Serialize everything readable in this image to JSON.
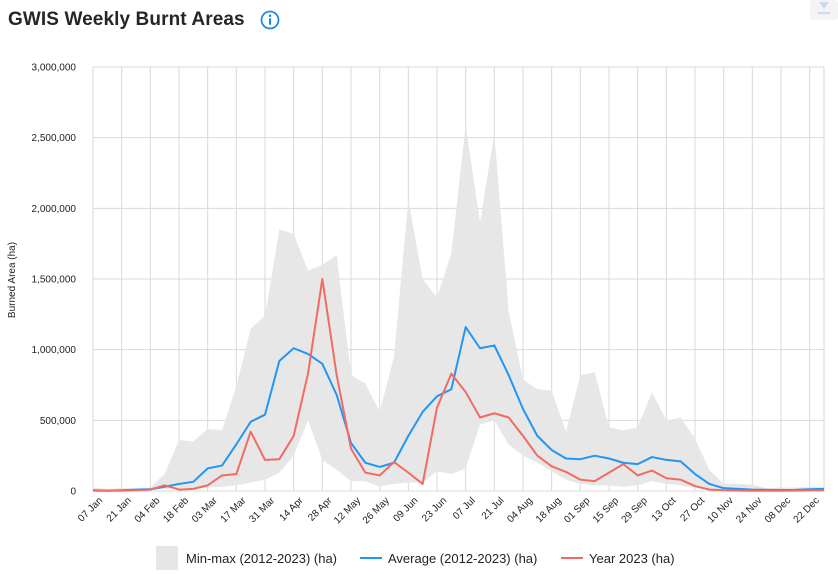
{
  "title": "GWIS Weekly Burnt Areas",
  "icons": {
    "info": "info-circle-icon",
    "download": "download-icon"
  },
  "colors": {
    "minmax": "#e6e6e6",
    "average": "#2196f3",
    "year": "#f26b63",
    "grid": "#d9d9d9"
  },
  "chart_data": {
    "type": "line",
    "title": "GWIS Weekly Burnt Areas",
    "ylabel": "Burned Area (ha)",
    "xlabel": "",
    "ylim": [
      0,
      3000000
    ],
    "yticks": [
      0,
      500000,
      1000000,
      1500000,
      2000000,
      2500000,
      3000000
    ],
    "ytick_labels": [
      "0",
      "500,000",
      "1,000,000",
      "1,500,000",
      "2,000,000",
      "2,500,000",
      "3,000,000"
    ],
    "xtick_labels": [
      "07 Jan",
      "21 Jan",
      "04 Feb",
      "18 Feb",
      "03 Mar",
      "17 Mar",
      "31 Mar",
      "14 Apr",
      "28 Apr",
      "12 May",
      "26 May",
      "09 Jun",
      "23 Jun",
      "07 Jul",
      "21 Jul",
      "04 Aug",
      "18 Aug",
      "01 Sep",
      "15 Sep",
      "29 Sep",
      "13 Oct",
      "27 Oct",
      "10 Nov",
      "24 Nov",
      "08 Dec",
      "22 Dec"
    ],
    "legend": [
      "Min-max (2012-2023) (ha)",
      "Average (2012-2023) (ha)",
      "Year 2023 (ha)"
    ],
    "legend_position": "bottom",
    "grid": true,
    "weeks": 52,
    "series": [
      {
        "name": "Min-max (2012-2023) (ha)",
        "kind": "range",
        "max": [
          25000,
          15000,
          20000,
          18000,
          25000,
          120000,
          360000,
          350000,
          440000,
          430000,
          740000,
          1150000,
          1240000,
          1850000,
          1820000,
          1560000,
          1600000,
          1670000,
          820000,
          760000,
          560000,
          950000,
          2060000,
          1500000,
          1370000,
          1680000,
          2590000,
          1900000,
          2530000,
          1270000,
          790000,
          720000,
          710000,
          420000,
          820000,
          840000,
          450000,
          430000,
          450000,
          700000,
          500000,
          520000,
          370000,
          150000,
          50000,
          50000,
          45000,
          20000,
          25000,
          25000,
          30000,
          30000
        ],
        "min": [
          5000,
          3000,
          2000,
          3000,
          5000,
          15000,
          20000,
          20000,
          25000,
          30000,
          40000,
          60000,
          80000,
          130000,
          250000,
          500000,
          220000,
          150000,
          70000,
          70000,
          30000,
          50000,
          60000,
          60000,
          140000,
          120000,
          160000,
          470000,
          500000,
          330000,
          250000,
          200000,
          140000,
          80000,
          50000,
          40000,
          40000,
          30000,
          40000,
          70000,
          50000,
          40000,
          20000,
          10000,
          5000,
          3000,
          2000,
          2000,
          2000,
          2000,
          5000,
          5000
        ]
      },
      {
        "name": "Average (2012-2023) (ha)",
        "kind": "line",
        "values": [
          5000,
          2000,
          5000,
          10000,
          12000,
          30000,
          50000,
          65000,
          160000,
          180000,
          330000,
          490000,
          540000,
          920000,
          1010000,
          970000,
          900000,
          680000,
          340000,
          200000,
          170000,
          200000,
          390000,
          560000,
          670000,
          720000,
          1160000,
          1010000,
          1030000,
          820000,
          580000,
          390000,
          290000,
          230000,
          225000,
          250000,
          230000,
          200000,
          190000,
          240000,
          220000,
          210000,
          120000,
          50000,
          20000,
          15000,
          10000,
          8000,
          7000,
          8000,
          12000,
          15000
        ]
      },
      {
        "name": "Year 2023 (ha)",
        "kind": "line",
        "values": [
          2000,
          2000,
          3000,
          5000,
          10000,
          40000,
          10000,
          15000,
          40000,
          110000,
          120000,
          420000,
          220000,
          225000,
          390000,
          830000,
          1500000,
          820000,
          300000,
          130000,
          110000,
          205000,
          130000,
          50000,
          590000,
          830000,
          700000,
          520000,
          550000,
          520000,
          390000,
          250000,
          175000,
          135000,
          80000,
          70000,
          130000,
          190000,
          110000,
          145000,
          90000,
          80000,
          35000,
          10000,
          5000,
          3000,
          2000,
          2000,
          2000,
          3000,
          4000,
          5000
        ]
      }
    ]
  }
}
